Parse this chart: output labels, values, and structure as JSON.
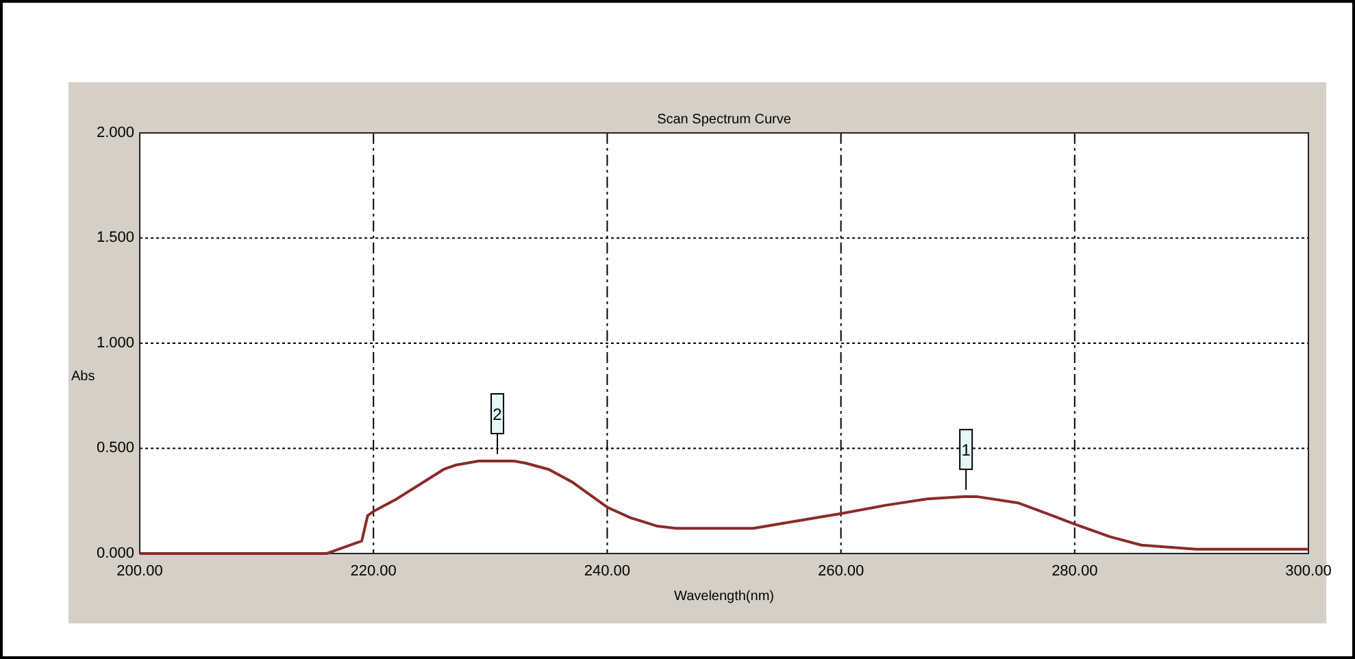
{
  "chart_data": {
    "type": "line",
    "title": "Scan Spectrum Curve",
    "xlabel": "Wavelength(nm)",
    "ylabel": "Abs",
    "xlim": [
      200,
      300
    ],
    "ylim": [
      0,
      2
    ],
    "xticks": [
      {
        "value": 200,
        "label": "200.00"
      },
      {
        "value": 220,
        "label": "220.00"
      },
      {
        "value": 240,
        "label": "240.00"
      },
      {
        "value": 260,
        "label": "260.00"
      },
      {
        "value": 280,
        "label": "280.00"
      },
      {
        "value": 300,
        "label": "300.00"
      }
    ],
    "yticks": [
      {
        "value": 0,
        "label": "0.000"
      },
      {
        "value": 0.5,
        "label": "0.500"
      },
      {
        "value": 1,
        "label": "1.000"
      },
      {
        "value": 1.5,
        "label": "1.500"
      },
      {
        "value": 2,
        "label": "2.000"
      }
    ],
    "grid": true,
    "marker": "none",
    "line_style": "solid",
    "series": [
      {
        "color": "#8b2a2a",
        "x": [
          200,
          216,
          217,
          219,
          219.5,
          220,
          222,
          224,
          226,
          227,
          228,
          229,
          232,
          233,
          235,
          237,
          239,
          240,
          242,
          244.3,
          245.9,
          252.5,
          255.7,
          260,
          263.9,
          267.4,
          270.5,
          271.7,
          275.2,
          280,
          283,
          285.7,
          290.4,
          300
        ],
        "values": [
          0,
          0,
          0.02,
          0.06,
          0.18,
          0.2,
          0.26,
          0.33,
          0.4,
          0.42,
          0.43,
          0.44,
          0.44,
          0.43,
          0.4,
          0.34,
          0.26,
          0.22,
          0.17,
          0.13,
          0.12,
          0.12,
          0.15,
          0.19,
          0.23,
          0.26,
          0.27,
          0.27,
          0.24,
          0.14,
          0.08,
          0.04,
          0.02,
          0.02
        ]
      }
    ],
    "annotations": [
      {
        "text": "2",
        "x": 230.6,
        "y": 0.44
      },
      {
        "text": "1",
        "x": 270.7,
        "y": 0.27
      }
    ]
  }
}
